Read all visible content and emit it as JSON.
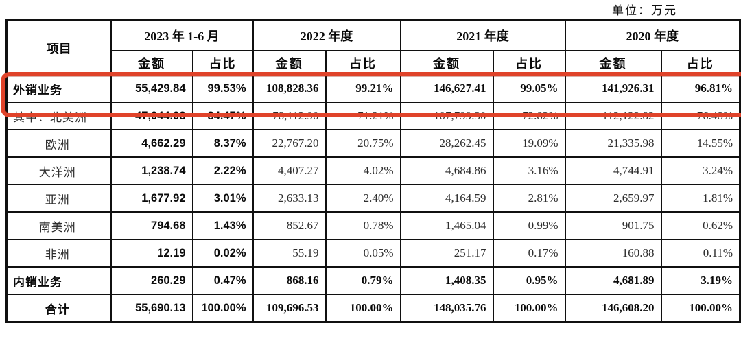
{
  "unit_label": "单位：万元",
  "highlight_color": "#e0432a",
  "table": {
    "item_header": "项目",
    "year_headers": [
      "2023 年 1-6 月",
      "2022 年度",
      "2021 年度",
      "2020 年度"
    ],
    "sub_headers": [
      "金额",
      "占比"
    ],
    "rows": [
      {
        "label": "外销业务",
        "align": "left",
        "bold": true,
        "highlight": true,
        "values": [
          "55,429.84",
          "99.53%",
          "108,828.36",
          "99.21%",
          "146,627.41",
          "99.05%",
          "141,926.31",
          "96.81%"
        ]
      },
      {
        "label": "其中：北美洲",
        "align": "left",
        "bold": false,
        "highlight": false,
        "values": [
          "47,044.03",
          "84.47%",
          "78,112.90",
          "71.21%",
          "107,799.30",
          "72.82%",
          "112,122.82",
          "76.48%"
        ]
      },
      {
        "label": "欧洲",
        "align": "center",
        "bold": false,
        "highlight": false,
        "values": [
          "4,662.29",
          "8.37%",
          "22,767.20",
          "20.75%",
          "28,262.45",
          "19.09%",
          "21,335.98",
          "14.55%"
        ]
      },
      {
        "label": "大洋洲",
        "align": "center",
        "bold": false,
        "highlight": false,
        "values": [
          "1,238.74",
          "2.22%",
          "4,407.27",
          "4.02%",
          "4,684.86",
          "3.16%",
          "4,744.91",
          "3.24%"
        ]
      },
      {
        "label": "亚洲",
        "align": "center",
        "bold": false,
        "highlight": false,
        "values": [
          "1,677.92",
          "3.01%",
          "2,633.13",
          "2.40%",
          "4,164.59",
          "2.81%",
          "2,659.97",
          "1.81%"
        ]
      },
      {
        "label": "南美洲",
        "align": "center",
        "bold": false,
        "highlight": false,
        "values": [
          "794.68",
          "1.43%",
          "852.67",
          "0.78%",
          "1,465.04",
          "0.99%",
          "901.75",
          "0.62%"
        ]
      },
      {
        "label": "非洲",
        "align": "center",
        "bold": false,
        "highlight": false,
        "values": [
          "12.19",
          "0.02%",
          "55.19",
          "0.05%",
          "251.17",
          "0.17%",
          "160.88",
          "0.11%"
        ]
      },
      {
        "label": "内销业务",
        "align": "left",
        "bold": true,
        "highlight": false,
        "values": [
          "260.29",
          "0.47%",
          "868.16",
          "0.79%",
          "1,408.35",
          "0.95%",
          "4,681.89",
          "3.19%"
        ]
      },
      {
        "label": "合计",
        "align": "center",
        "bold": true,
        "highlight": false,
        "values": [
          "55,690.13",
          "100.00%",
          "109,696.53",
          "100.00%",
          "148,035.76",
          "100.00%",
          "146,608.20",
          "100.00%"
        ]
      }
    ]
  }
}
